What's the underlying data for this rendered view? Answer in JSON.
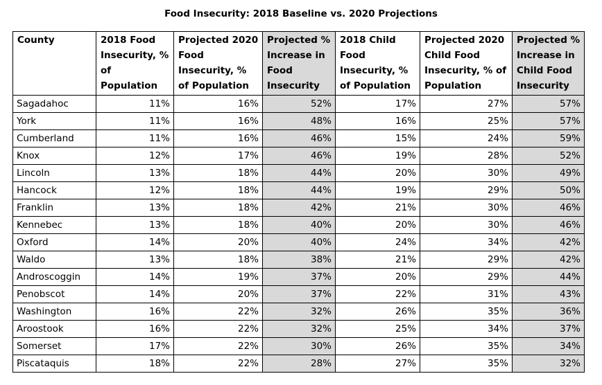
{
  "title": "Food Insecurity: 2018 Baseline vs. 2020 Projections",
  "colors": {
    "highlight_column": "#d9d9d9",
    "border": "#000000"
  },
  "table": {
    "headers": [
      "County",
      "2018 Food Insecurity, % of Population",
      "Projected 2020 Food Insecurity, % of Population",
      "Projected % Increase in Food Insecurity",
      "2018 Child Food Insecurity, % of Population",
      "Projected 2020 Child Food Insecurity, % of Population",
      "Projected % Increase in Child Food Insecurity"
    ],
    "rows": [
      [
        "Sagadahoc",
        "11%",
        "16%",
        "52%",
        "17%",
        "27%",
        "57%"
      ],
      [
        "York",
        "11%",
        "16%",
        "48%",
        "16%",
        "25%",
        "57%"
      ],
      [
        "Cumberland",
        "11%",
        "16%",
        "46%",
        "15%",
        "24%",
        "59%"
      ],
      [
        "Knox",
        "12%",
        "17%",
        "46%",
        "19%",
        "28%",
        "52%"
      ],
      [
        "Lincoln",
        "13%",
        "18%",
        "44%",
        "20%",
        "30%",
        "49%"
      ],
      [
        "Hancock",
        "12%",
        "18%",
        "44%",
        "19%",
        "29%",
        "50%"
      ],
      [
        "Franklin",
        "13%",
        "18%",
        "42%",
        "21%",
        "30%",
        "46%"
      ],
      [
        "Kennebec",
        "13%",
        "18%",
        "40%",
        "20%",
        "30%",
        "46%"
      ],
      [
        "Oxford",
        "14%",
        "20%",
        "40%",
        "24%",
        "34%",
        "42%"
      ],
      [
        "Waldo",
        "13%",
        "18%",
        "38%",
        "21%",
        "29%",
        "42%"
      ],
      [
        "Androscoggin",
        "14%",
        "19%",
        "37%",
        "20%",
        "29%",
        "44%"
      ],
      [
        "Penobscot",
        "14%",
        "20%",
        "37%",
        "22%",
        "31%",
        "43%"
      ],
      [
        "Washington",
        "16%",
        "22%",
        "32%",
        "26%",
        "35%",
        "36%"
      ],
      [
        "Aroostook",
        "16%",
        "22%",
        "32%",
        "25%",
        "34%",
        "37%"
      ],
      [
        "Somerset",
        "17%",
        "22%",
        "30%",
        "26%",
        "35%",
        "34%"
      ],
      [
        "Piscataquis",
        "18%",
        "22%",
        "28%",
        "27%",
        "35%",
        "32%"
      ]
    ]
  }
}
